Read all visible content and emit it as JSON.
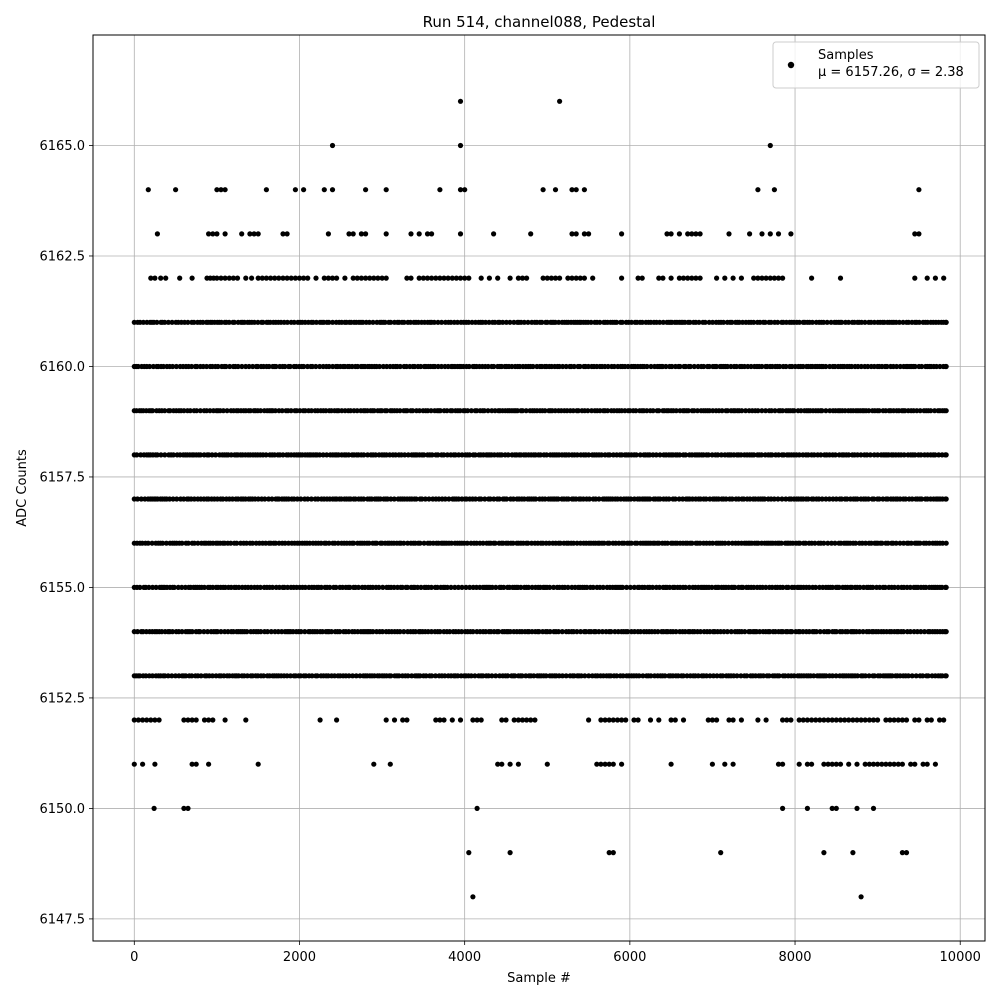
{
  "chart_data": {
    "type": "scatter",
    "title": "Run 514, channel088, Pedestal",
    "xlabel": "Sample #",
    "ylabel": "ADC Counts",
    "xlim": [
      -500,
      10300
    ],
    "ylim": [
      6147.0,
      6167.5
    ],
    "xticks": [
      0,
      2000,
      4000,
      6000,
      8000,
      10000
    ],
    "xtick_labels": [
      "0",
      "2000",
      "4000",
      "6000",
      "8000",
      "10000"
    ],
    "yticks": [
      6147.5,
      6150.0,
      6152.5,
      6155.0,
      6157.5,
      6160.0,
      6162.5,
      6165.0
    ],
    "ytick_labels": [
      "6147.5",
      "6150.0",
      "6152.5",
      "6155.0",
      "6157.5",
      "6160.0",
      "6162.5",
      "6165.0"
    ],
    "grid": true,
    "legend_position": "top-right",
    "marker_color": "#000000",
    "series": [
      {
        "name": "Samples",
        "stats": "μ = 6157.26, σ = 2.38",
        "x_range": [
          0,
          9830
        ],
        "count": 9831,
        "dense_levels": [
          6153,
          6154,
          6155,
          6156,
          6157,
          6158,
          6159,
          6160,
          6161
        ],
        "sparse_levels": [
          {
            "y": 6162,
            "x": [
              200,
              250,
              320,
              380,
              550,
              700,
              880,
              920,
              960,
              1000,
              1050,
              1100,
              1150,
              1200,
              1250,
              1350,
              1420,
              1500,
              1550,
              1600,
              1650,
              1700,
              1750,
              1800,
              1850,
              1900,
              1950,
              2000,
              2050,
              2100,
              2200,
              2300,
              2350,
              2400,
              2450,
              2550,
              2650,
              2700,
              2750,
              2800,
              2850,
              2900,
              2950,
              3000,
              3050,
              3300,
              3350,
              3450,
              3500,
              3550,
              3600,
              3650,
              3700,
              3750,
              3800,
              3850,
              3900,
              3950,
              4000,
              4050,
              4200,
              4300,
              4400,
              4550,
              4650,
              4700,
              4750,
              4950,
              5000,
              5050,
              5100,
              5150,
              5250,
              5300,
              5350,
              5400,
              5450,
              5550,
              5900,
              6100,
              6150,
              6350,
              6400,
              6500,
              6600,
              6650,
              6700,
              6750,
              6800,
              6850,
              7050,
              7150,
              7250,
              7350,
              7500,
              7550,
              7600,
              7650,
              7700,
              7750,
              7800,
              7850,
              8200,
              8550,
              9450,
              9600,
              9700,
              9800
            ]
          },
          {
            "y": 6163,
            "x": [
              280,
              900,
              950,
              1000,
              1100,
              1300,
              1400,
              1450,
              1500,
              1800,
              1850,
              2350,
              2600,
              2650,
              2750,
              2800,
              3050,
              3350,
              3450,
              3550,
              3600,
              3950,
              4350,
              4800,
              5300,
              5350,
              5450,
              5500,
              5900,
              6450,
              6500,
              6600,
              6700,
              6750,
              6800,
              6850,
              7200,
              7450,
              7600,
              7700,
              7800,
              7950,
              9450,
              9500
            ]
          },
          {
            "y": 6164,
            "x": [
              170,
              500,
              1000,
              1050,
              1100,
              1600,
              1950,
              2050,
              2300,
              2400,
              2800,
              3050,
              3700,
              3950,
              4000,
              4950,
              5100,
              5300,
              5350,
              5450,
              7550,
              7750,
              9500
            ]
          },
          {
            "y": 6165,
            "x": [
              2400,
              3950,
              7700
            ]
          },
          {
            "y": 6166,
            "x": [
              3950,
              5150
            ]
          },
          {
            "y": 6152,
            "x": [
              0,
              50,
              100,
              150,
              200,
              250,
              300,
              600,
              650,
              700,
              750,
              850,
              900,
              950,
              1100,
              1350,
              2250,
              2450,
              3050,
              3150,
              3250,
              3300,
              3650,
              3700,
              3750,
              3850,
              3950,
              4100,
              4150,
              4200,
              4450,
              4500,
              4600,
              4650,
              4700,
              4750,
              4800,
              4850,
              5500,
              5650,
              5700,
              5750,
              5800,
              5850,
              5900,
              5950,
              6050,
              6100,
              6250,
              6350,
              6500,
              6550,
              6650,
              6950,
              7000,
              7050,
              7200,
              7250,
              7350,
              7550,
              7650,
              7850,
              7900,
              7950,
              8050,
              8100,
              8150,
              8200,
              8250,
              8300,
              8350,
              8400,
              8450,
              8500,
              8550,
              8600,
              8650,
              8700,
              8750,
              8800,
              8850,
              8900,
              8950,
              9000,
              9100,
              9150,
              9200,
              9250,
              9300,
              9350,
              9450,
              9500,
              9600,
              9650,
              9750,
              9800
            ]
          },
          {
            "y": 6151,
            "x": [
              0,
              100,
              250,
              700,
              750,
              900,
              1500,
              2900,
              3100,
              4400,
              4450,
              4550,
              4650,
              5000,
              5600,
              5650,
              5700,
              5750,
              5800,
              5900,
              6500,
              7000,
              7150,
              7250,
              7800,
              7850,
              8050,
              8150,
              8200,
              8350,
              8400,
              8450,
              8500,
              8550,
              8650,
              8750,
              8850,
              8900,
              8950,
              9000,
              9050,
              9100,
              9150,
              9200,
              9250,
              9300,
              9400,
              9450,
              9550,
              9600,
              9700
            ]
          },
          {
            "y": 6150,
            "x": [
              240,
              600,
              650,
              4150,
              7850,
              8150,
              8450,
              8500,
              8750,
              8950
            ]
          },
          {
            "y": 6149,
            "x": [
              4050,
              4550,
              5750,
              5800,
              7100,
              8350,
              8700,
              9300,
              9350
            ]
          },
          {
            "y": 6148,
            "x": [
              4100,
              8800
            ]
          }
        ]
      }
    ]
  }
}
